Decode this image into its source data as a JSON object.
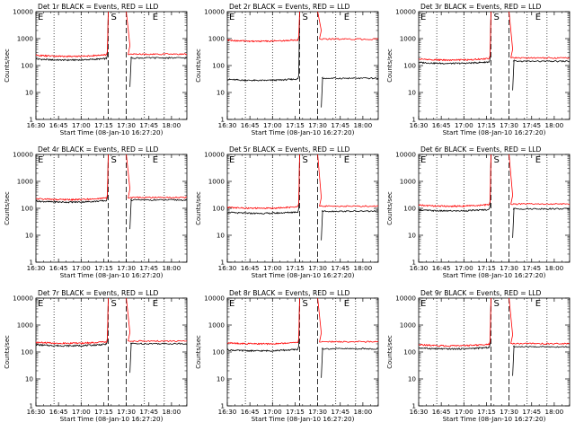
{
  "chart_data": [
    {
      "type": "line",
      "title": "Det 1r BLACK = Events, RED = LLD",
      "xlabel": "Start Time (08-Jan-10 16:27:20)",
      "ylabel": "Counts/sec",
      "xlim": [
        16.5,
        18.17
      ],
      "ylim": [
        1,
        10000
      ],
      "yscale": "log",
      "x_tick_labels": [
        "16:30",
        "16:45",
        "17:00",
        "17:15",
        "17:30",
        "17:45",
        "18:00"
      ],
      "y_tick_labels": [
        "1",
        "10",
        "100",
        "1000",
        "10000"
      ],
      "marker_labels": {
        "s": "S",
        "e": "E"
      },
      "marker_times": {
        "b0": 16.5,
        "d1": 16.733,
        "d2": 17.0,
        "d3": 17.5,
        "d4": 17.733,
        "d5": 17.9
      },
      "series": [
        {
          "name": "Events",
          "color": "#000000",
          "black_base": 160,
          "red_base": 220
        },
        {
          "name": "LLD",
          "color": "#ff0000"
        }
      ]
    },
    {
      "type": "line",
      "title": "Det 2r BLACK = Events, RED = LLD",
      "xlabel": "Start Time (08-Jan-10 16:27:20)",
      "ylabel": "Counts/sec",
      "xlim": [
        16.5,
        18.17
      ],
      "ylim": [
        1,
        10000
      ],
      "yscale": "log",
      "x_tick_labels": [
        "16:30",
        "16:45",
        "17:00",
        "17:15",
        "17:30",
        "17:45",
        "18:00"
      ],
      "y_tick_labels": [
        "1",
        "10",
        "100",
        "1000",
        "10000"
      ],
      "marker_labels": {
        "s": "S",
        "e": "E"
      },
      "series": [
        {
          "name": "Events",
          "color": "#000000",
          "black_base": 28,
          "red_base": 800
        },
        {
          "name": "LLD",
          "color": "#ff0000"
        }
      ]
    },
    {
      "type": "line",
      "title": "Det 3r BLACK = Events, RED = LLD",
      "xlabel": "Start Time (08-Jan-10 16:27:20)",
      "ylabel": "Counts/sec",
      "xlim": [
        16.5,
        18.17
      ],
      "ylim": [
        1,
        10000
      ],
      "yscale": "log",
      "x_tick_labels": [
        "16:30",
        "16:45",
        "17:00",
        "17:15",
        "17:30",
        "17:45",
        "18:00"
      ],
      "y_tick_labels": [
        "1",
        "10",
        "100",
        "1000",
        "10000"
      ],
      "marker_labels": {
        "s": "S",
        "e": "E"
      },
      "series": [
        {
          "name": "Events",
          "color": "#000000",
          "black_base": 120,
          "red_base": 160
        },
        {
          "name": "LLD",
          "color": "#ff0000"
        }
      ]
    },
    {
      "type": "line",
      "title": "Det 4r BLACK = Events, RED = LLD",
      "xlabel": "Start Time (08-Jan-10 16:27:20)",
      "ylabel": "Counts/sec",
      "xlim": [
        16.5,
        18.17
      ],
      "ylim": [
        1,
        10000
      ],
      "yscale": "log",
      "x_tick_labels": [
        "16:30",
        "16:45",
        "17:00",
        "17:15",
        "17:30",
        "17:45",
        "18:00"
      ],
      "y_tick_labels": [
        "1",
        "10",
        "100",
        "1000",
        "10000"
      ],
      "marker_labels": {
        "s": "S",
        "e": "E"
      },
      "series": [
        {
          "name": "Events",
          "color": "#000000",
          "black_base": 170,
          "red_base": 210
        },
        {
          "name": "LLD",
          "color": "#ff0000"
        }
      ]
    },
    {
      "type": "line",
      "title": "Det 5r BLACK = Events, RED = LLD",
      "xlabel": "Start Time (08-Jan-10 16:27:20)",
      "ylabel": "Counts/sec",
      "xlim": [
        16.5,
        18.17
      ],
      "ylim": [
        1,
        10000
      ],
      "yscale": "log",
      "x_tick_labels": [
        "16:30",
        "16:45",
        "17:00",
        "17:15",
        "17:30",
        "17:45",
        "18:00"
      ],
      "y_tick_labels": [
        "1",
        "10",
        "100",
        "1000",
        "10000"
      ],
      "marker_labels": {
        "s": "S",
        "e": "E"
      },
      "series": [
        {
          "name": "Events",
          "color": "#000000",
          "black_base": 65,
          "red_base": 100
        },
        {
          "name": "LLD",
          "color": "#ff0000"
        }
      ]
    },
    {
      "type": "line",
      "title": "Det 6r BLACK = Events, RED = LLD",
      "xlabel": "Start Time (08-Jan-10 16:27:20)",
      "ylabel": "Counts/sec",
      "xlim": [
        16.5,
        18.17
      ],
      "ylim": [
        1,
        10000
      ],
      "yscale": "log",
      "x_tick_labels": [
        "16:30",
        "16:45",
        "17:00",
        "17:15",
        "17:30",
        "17:45",
        "18:00"
      ],
      "y_tick_labels": [
        "1",
        "10",
        "100",
        "1000",
        "10000"
      ],
      "marker_labels": {
        "s": "S",
        "e": "E"
      },
      "series": [
        {
          "name": "Events",
          "color": "#000000",
          "black_base": 80,
          "red_base": 120
        },
        {
          "name": "LLD",
          "color": "#ff0000"
        }
      ]
    },
    {
      "type": "line",
      "title": "Det 7r BLACK = Events, RED = LLD",
      "xlabel": "Start Time (08-Jan-10 16:27:20)",
      "ylabel": "Counts/sec",
      "xlim": [
        16.5,
        18.17
      ],
      "ylim": [
        1,
        10000
      ],
      "yscale": "log",
      "x_tick_labels": [
        "16:30",
        "16:45",
        "17:00",
        "17:15",
        "17:30",
        "17:45",
        "18:00"
      ],
      "y_tick_labels": [
        "1",
        "10",
        "100",
        "1000",
        "10000"
      ],
      "marker_labels": {
        "s": "S",
        "e": "E"
      },
      "series": [
        {
          "name": "Events",
          "color": "#000000",
          "black_base": 170,
          "red_base": 210
        },
        {
          "name": "LLD",
          "color": "#ff0000"
        }
      ]
    },
    {
      "type": "line",
      "title": "Det 8r BLACK = Events, RED = LLD",
      "xlabel": "Start Time (08-Jan-10 16:27:20)",
      "ylabel": "Counts/sec",
      "xlim": [
        16.5,
        18.17
      ],
      "ylim": [
        1,
        10000
      ],
      "yscale": "log",
      "x_tick_labels": [
        "16:30",
        "16:45",
        "17:00",
        "17:15",
        "17:30",
        "17:45",
        "18:00"
      ],
      "y_tick_labels": [
        "1",
        "10",
        "100",
        "1000",
        "10000"
      ],
      "marker_labels": {
        "s": "S",
        "e": "E"
      },
      "series": [
        {
          "name": "Events",
          "color": "#000000",
          "black_base": 110,
          "red_base": 200
        },
        {
          "name": "LLD",
          "color": "#ff0000"
        }
      ]
    },
    {
      "type": "line",
      "title": "Det 9r BLACK = Events, RED = LLD",
      "xlabel": "Start Time (08-Jan-10 16:27:20)",
      "ylabel": "Counts/sec",
      "xlim": [
        16.5,
        18.17
      ],
      "ylim": [
        1,
        10000
      ],
      "yscale": "log",
      "x_tick_labels": [
        "16:30",
        "16:45",
        "17:00",
        "17:15",
        "17:30",
        "17:45",
        "18:00"
      ],
      "y_tick_labels": [
        "1",
        "10",
        "100",
        "1000",
        "10000"
      ],
      "marker_labels": {
        "s": "S",
        "e": "E"
      },
      "series": [
        {
          "name": "Events",
          "color": "#000000",
          "black_base": 130,
          "red_base": 170
        },
        {
          "name": "LLD",
          "color": "#ff0000"
        }
      ]
    }
  ]
}
